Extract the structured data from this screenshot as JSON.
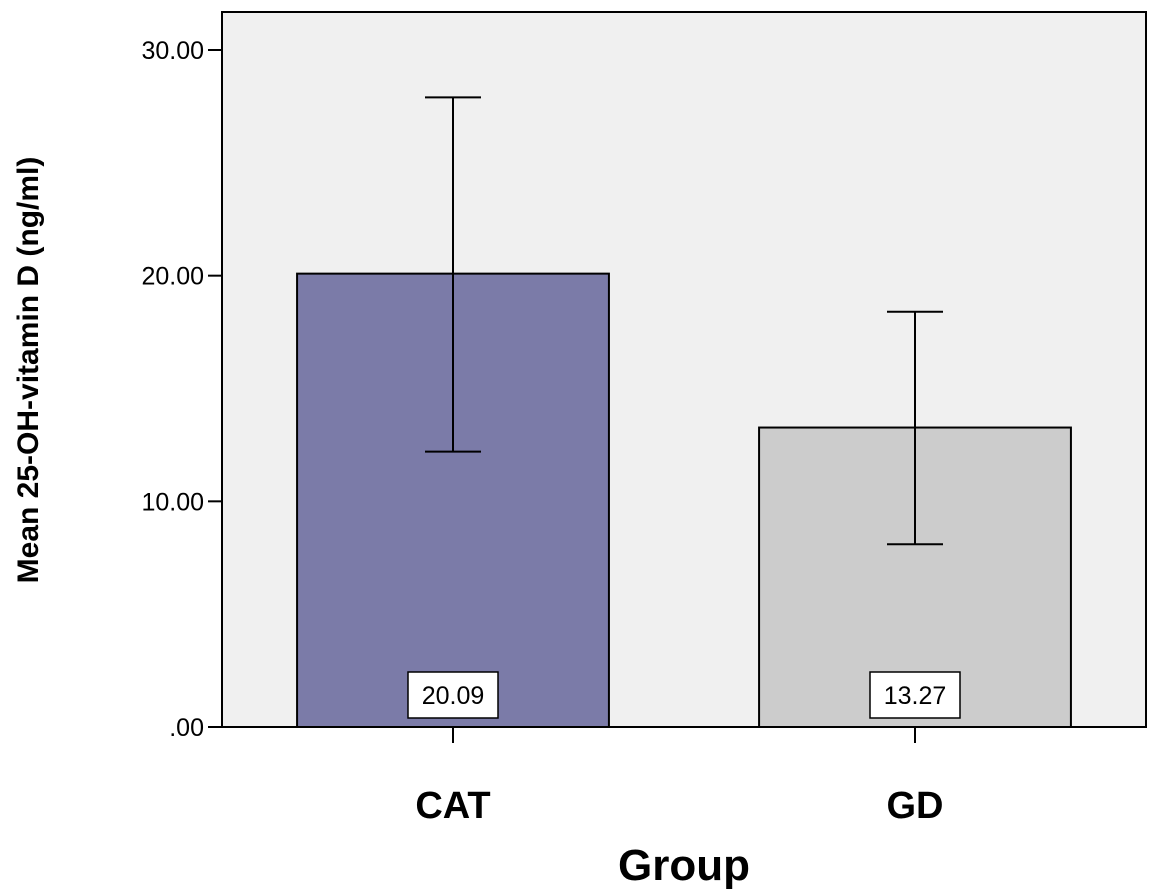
{
  "chart_data": {
    "type": "bar",
    "xlabel": "Group",
    "ylabel": "Mean 25-OH-vitamin D (ng/ml)",
    "categories": [
      "CAT",
      "GD"
    ],
    "values": [
      20.09,
      13.27
    ],
    "value_labels": [
      "20.09",
      "13.27"
    ],
    "error_low": [
      12.2,
      8.1
    ],
    "error_high": [
      27.9,
      18.4
    ],
    "ylim": [
      0,
      30
    ],
    "yticks": [
      0,
      10,
      20,
      30
    ],
    "ytick_labels": [
      ".00",
      "10.00",
      "20.00",
      "30.00"
    ],
    "bar_colors": [
      "#7b7ba8",
      "#cccccc"
    ],
    "plot_background": "#f0f0f0",
    "grid": false
  }
}
